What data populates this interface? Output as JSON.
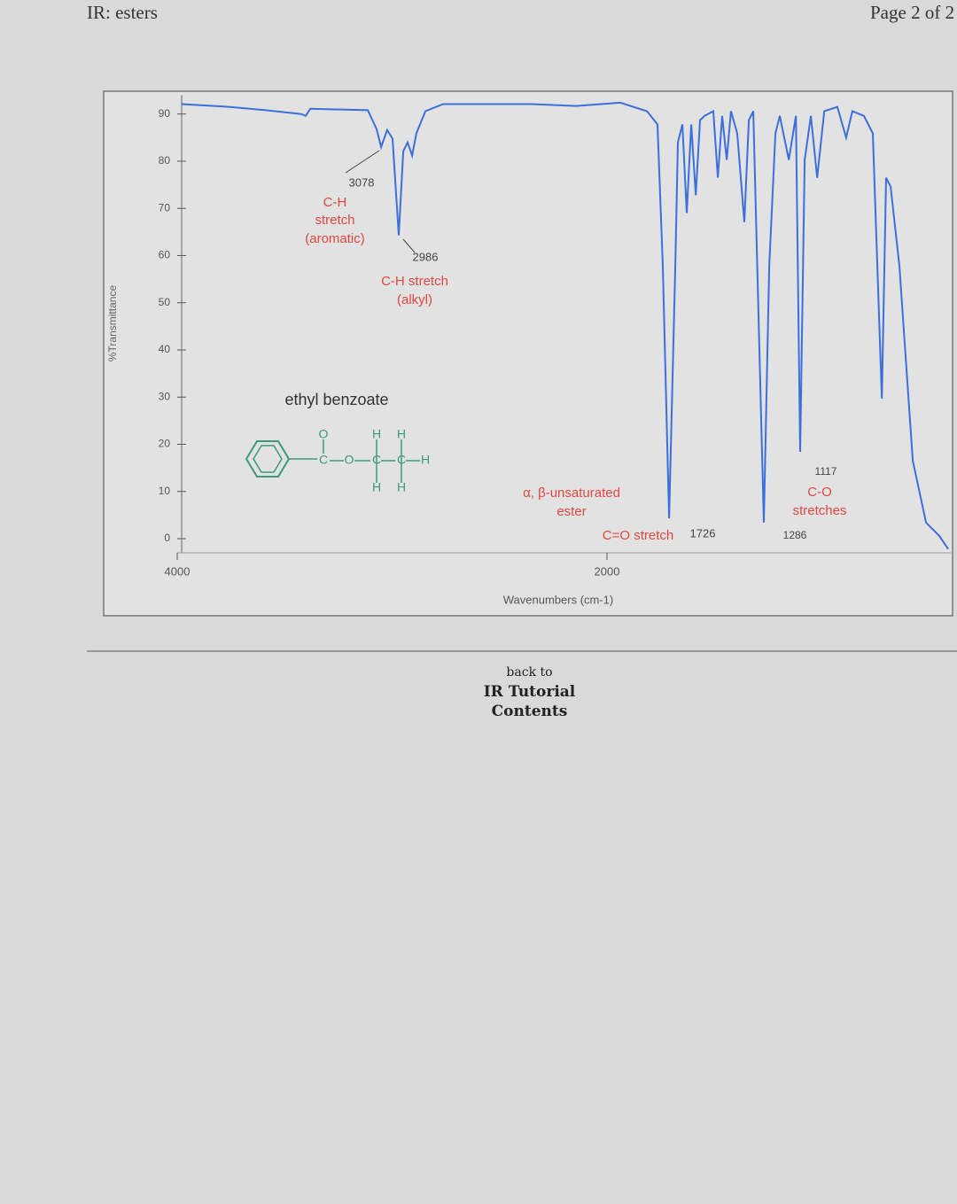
{
  "header": {
    "title": "IR: esters",
    "page": "Page 2 of 2"
  },
  "chart_data": {
    "type": "line",
    "xlabel": "Wavenumbers (cm-1)",
    "ylabel": "%Transmittance",
    "compound": "ethyl benzoate",
    "atoms": [
      "O",
      "C",
      "O",
      "C",
      "C",
      "H",
      "H",
      "H",
      "H",
      "H"
    ],
    "annotations": [
      "3078",
      "C-H",
      "stretch",
      "(aromatic)",
      "2986",
      "C-H stretch",
      "(alkyl)",
      "α, β-unsaturated",
      "ester",
      "C=O stretch",
      "1726",
      "1286",
      "1117",
      "C-O",
      "stretches"
    ],
    "xlim": [
      4000,
      400
    ],
    "xticks": [
      4000,
      2000
    ],
    "ylim": [
      -3,
      94
    ],
    "yticks": [
      0,
      10,
      20,
      30,
      40,
      50,
      60,
      70,
      80,
      90
    ],
    "series": [
      {
        "name": "ethyl benzoate",
        "color": "#3d6fdc",
        "x": [
          3979,
          3753,
          3588,
          3423,
          3402,
          3381,
          3113,
          3072,
          3051,
          3023,
          2998,
          2969,
          2948,
          2928,
          2907,
          2887,
          2845,
          2763,
          2350,
          2144,
          1938,
          1814,
          1765,
          1740,
          1711,
          1682,
          1670,
          1649,
          1629,
          1608,
          1587,
          1567,
          1546,
          1505,
          1484,
          1464,
          1443,
          1423,
          1394,
          1361,
          1340,
          1319,
          1270,
          1245,
          1216,
          1196,
          1154,
          1121,
          1101,
          1080,
          1051,
          1022,
          989,
          928,
          887,
          858,
          804,
          763,
          742,
          721,
          701,
          680,
          639,
          577,
          515,
          454,
          412
        ],
        "values": [
          92.1,
          91.5,
          90.8,
          90.0,
          89.6,
          91.1,
          90.8,
          86.8,
          83.0,
          86.6,
          84.8,
          64.3,
          82.1,
          84.0,
          81.2,
          85.9,
          90.6,
          92.1,
          92.1,
          91.7,
          92.4,
          90.6,
          87.8,
          57.8,
          4.3,
          57.8,
          84.0,
          87.8,
          69.0,
          87.8,
          72.8,
          88.7,
          89.6,
          90.6,
          76.5,
          89.6,
          80.3,
          90.6,
          85.9,
          67.1,
          88.7,
          90.6,
          3.4,
          57.8,
          85.9,
          89.6,
          80.3,
          89.6,
          18.4,
          80.3,
          89.6,
          76.5,
          90.6,
          91.5,
          85.0,
          90.6,
          89.6,
          85.9,
          57.8,
          29.7,
          76.5,
          74.6,
          57.8,
          16.5,
          3.4,
          0.6,
          -2.2
        ]
      }
    ]
  },
  "footer": {
    "link": [
      "back to",
      "IR Tutorial",
      "Contents"
    ]
  }
}
